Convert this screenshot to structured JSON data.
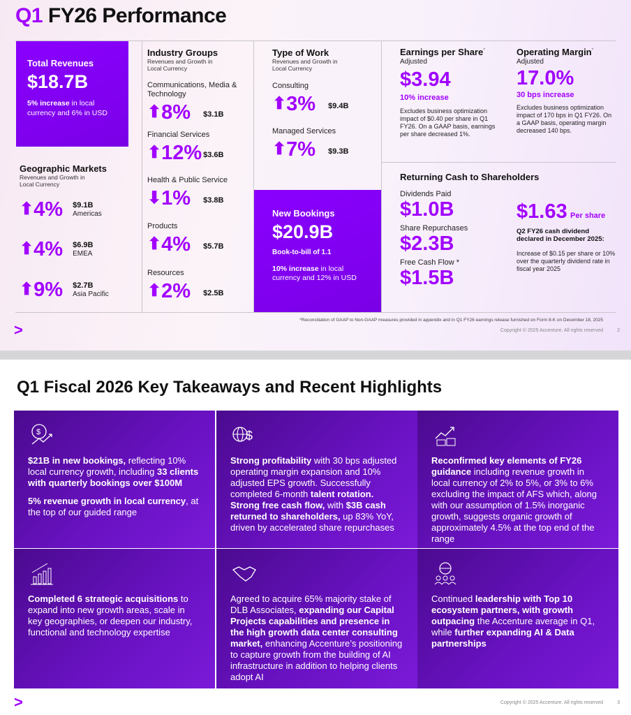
{
  "slide1": {
    "title_q": "Q1",
    "title_rest": "FY26 Performance",
    "total": {
      "label": "Total Revenues",
      "value": "$18.7B",
      "note_bold": "5% increase",
      "note_rest": " in local currency and 6% in USD"
    },
    "geo": {
      "title": "Geographic Markets",
      "sub": "Revenues and Growth in Local Currency",
      "items": [
        {
          "pct": "4%",
          "amt": "$9.1B",
          "name": "Americas",
          "dir": "up"
        },
        {
          "pct": "4%",
          "amt": "$6.9B",
          "name": "EMEA",
          "dir": "up"
        },
        {
          "pct": "9%",
          "amt": "$2.7B",
          "name": "Asia Pacific",
          "dir": "up"
        }
      ]
    },
    "industry": {
      "title": "Industry Groups",
      "sub": "Revenues and Growth in Local Currency",
      "items": [
        {
          "name": "Communications, Media & Technology",
          "pct": "8%",
          "amt": "$3.1B",
          "dir": "up"
        },
        {
          "name": "Financial Services",
          "pct": "12%",
          "amt": "$3.6B",
          "dir": "up"
        },
        {
          "name": "Health & Public Service",
          "pct": "1%",
          "amt": "$3.8B",
          "dir": "down"
        },
        {
          "name": "Products",
          "pct": "4%",
          "amt": "$5.7B",
          "dir": "up"
        },
        {
          "name": "Resources",
          "pct": "2%",
          "amt": "$2.5B",
          "dir": "up"
        }
      ]
    },
    "work": {
      "title": "Type of Work",
      "sub": "Revenues and Growth in Local Currency",
      "items": [
        {
          "name": "Consulting",
          "pct": "3%",
          "amt": "$9.4B",
          "dir": "up"
        },
        {
          "name": "Managed Services",
          "pct": "7%",
          "amt": "$9.3B",
          "dir": "up"
        }
      ]
    },
    "bookings": {
      "label": "New Bookings",
      "value": "$20.9B",
      "btb": "Book-to-bill of 1.1",
      "note_bold": "10% increase",
      "note_rest": " in local currency and 12% in USD"
    },
    "eps": {
      "title": "Earnings per Share",
      "star": "*",
      "sub": "Adjusted",
      "value": "$3.94",
      "change": "10% increase",
      "note": "Excludes business optimization impact of $0.40 per share in Q1 FY26. On a GAAP basis, earnings per share decreased 1%."
    },
    "margin": {
      "title": "Operating Margin",
      "star": "*",
      "sub": "Adjusted",
      "value": "17.0%",
      "change": "30 bps increase",
      "note": "Excludes business optimization impact of 170 bps in Q1 FY26. On a GAAP basis, operating margin decreased 140 bps."
    },
    "cash": {
      "title": "Returning Cash to Shareholders",
      "div_label": "Dividends Paid",
      "div": "$1.0B",
      "rep_label": "Share Repurchases",
      "rep": "$2.3B",
      "fcf_label": "Free Cash Flow *",
      "fcf": "$1.5B",
      "per_share": "$1.63",
      "per_share_unit": "Per share",
      "decl": "Q2 FY26 cash dividend declared in December 2025:",
      "decl_note": "Increase of $0.15 per share or 10% over the quarterly dividend rate in fiscal year 2025"
    },
    "footnote": "*Reconciliation of GAAP to Non-GAAP measures provided in appendix and in Q1 FY26 earnings release furnished on Form 8-K on December 18, 2025",
    "copyright": "Copyright © 2025 Accenture. All rights reserved",
    "page": "2",
    "logo": ">"
  },
  "slide2": {
    "title": "Q1 Fiscal 2026 Key Takeaways and Recent Highlights",
    "copyright": "Copyright © 2025 Accenture. All rights reserved",
    "page": "3",
    "logo": ">",
    "cells": [
      {
        "icon": "dollar-growth-icon",
        "html": "<p><b>$21B in new bookings,</b> reflecting 10% local currency growth, including <b>33 clients with quarterly bookings over $100M</b></p><p><b>5% revenue growth in local currency</b>, at the top of our guided range</p>"
      },
      {
        "icon": "globe-dollar-icon",
        "html": "<p><b>Strong profitability</b> with 30 bps adjusted operating margin expansion and 10% adjusted EPS growth. Successfully completed 6-month <b>talent rotation. Strong free cash flow,</b> with <b>$3B cash returned to shareholders,</b> up 83% YoY, driven by accelerated share repurchases</p>"
      },
      {
        "icon": "chart-coins-icon",
        "html": "<p><b>Reconfirmed key elements of FY26 guidance</b> including revenue growth in local currency of 2% to 5%, or 3% to 6% excluding the impact of AFS which, along with our assumption of 1.5% inorganic growth, suggests organic growth of approximately 4.5% at the top end of the range</p>"
      },
      {
        "icon": "bar-chart-growth-icon",
        "html": "<p><b>Completed 6 strategic acquisitions</b> to expand into new growth areas, scale in key geographies, or deepen our industry, functional and technology expertise</p>"
      },
      {
        "icon": "handshake-icon",
        "html": "<p>Agreed to acquire 65% majority stake of DLB Associates, <b>expanding our Capital Projects capabilities and presence in the high growth data center consulting market,</b> enhancing Accenture’s positioning to capture growth from the building of AI infrastructure in addition to helping clients adopt AI</p>"
      },
      {
        "icon": "globe-people-icon",
        "html": "<p>Continued <b>leadership with Top 10 ecosystem partners, with growth outpacing</b> the Accenture average in Q1, while <b>further expanding AI &amp; Data partnerships</b></p>"
      }
    ]
  },
  "colors": {
    "accent": "#a100ff",
    "dark_purple": "#4b0a8f"
  }
}
